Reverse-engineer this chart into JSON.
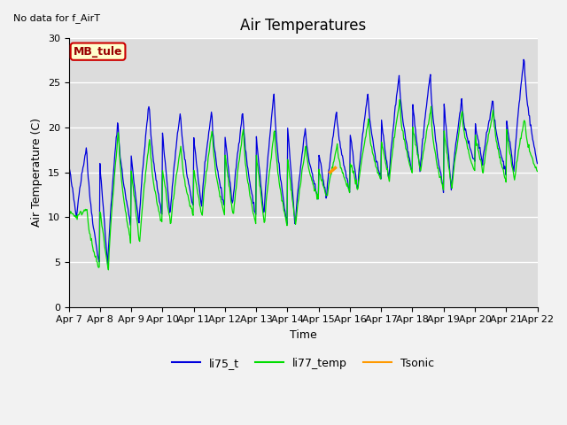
{
  "title": "Air Temperatures",
  "xlabel": "Time",
  "ylabel": "Air Temperature (C)",
  "top_left_text": "No data for f_AirT",
  "station_label": "MB_tule",
  "ylim": [
    0,
    30
  ],
  "xlim": [
    0,
    15
  ],
  "xtick_labels": [
    "Apr 7",
    "Apr 8",
    "Apr 9",
    "Apr 10",
    "Apr 11",
    "Apr 12",
    "Apr 13",
    "Apr 14",
    "Apr 15",
    "Apr 16",
    "Apr 17",
    "Apr 18",
    "Apr 19",
    "Apr 20",
    "Apr 21",
    "Apr 22"
  ],
  "ytick_labels": [
    0,
    5,
    10,
    15,
    20,
    25,
    30
  ],
  "line_colors": {
    "li75_t": "#0000dd",
    "li77_temp": "#00dd00",
    "Tsonic": "#ff9900"
  },
  "ax_facecolor": "#dcdcdc",
  "fig_facecolor": "#f2f2f2",
  "grid_color": "#ffffff",
  "title_fontsize": 12,
  "label_fontsize": 9,
  "tick_fontsize": 8
}
